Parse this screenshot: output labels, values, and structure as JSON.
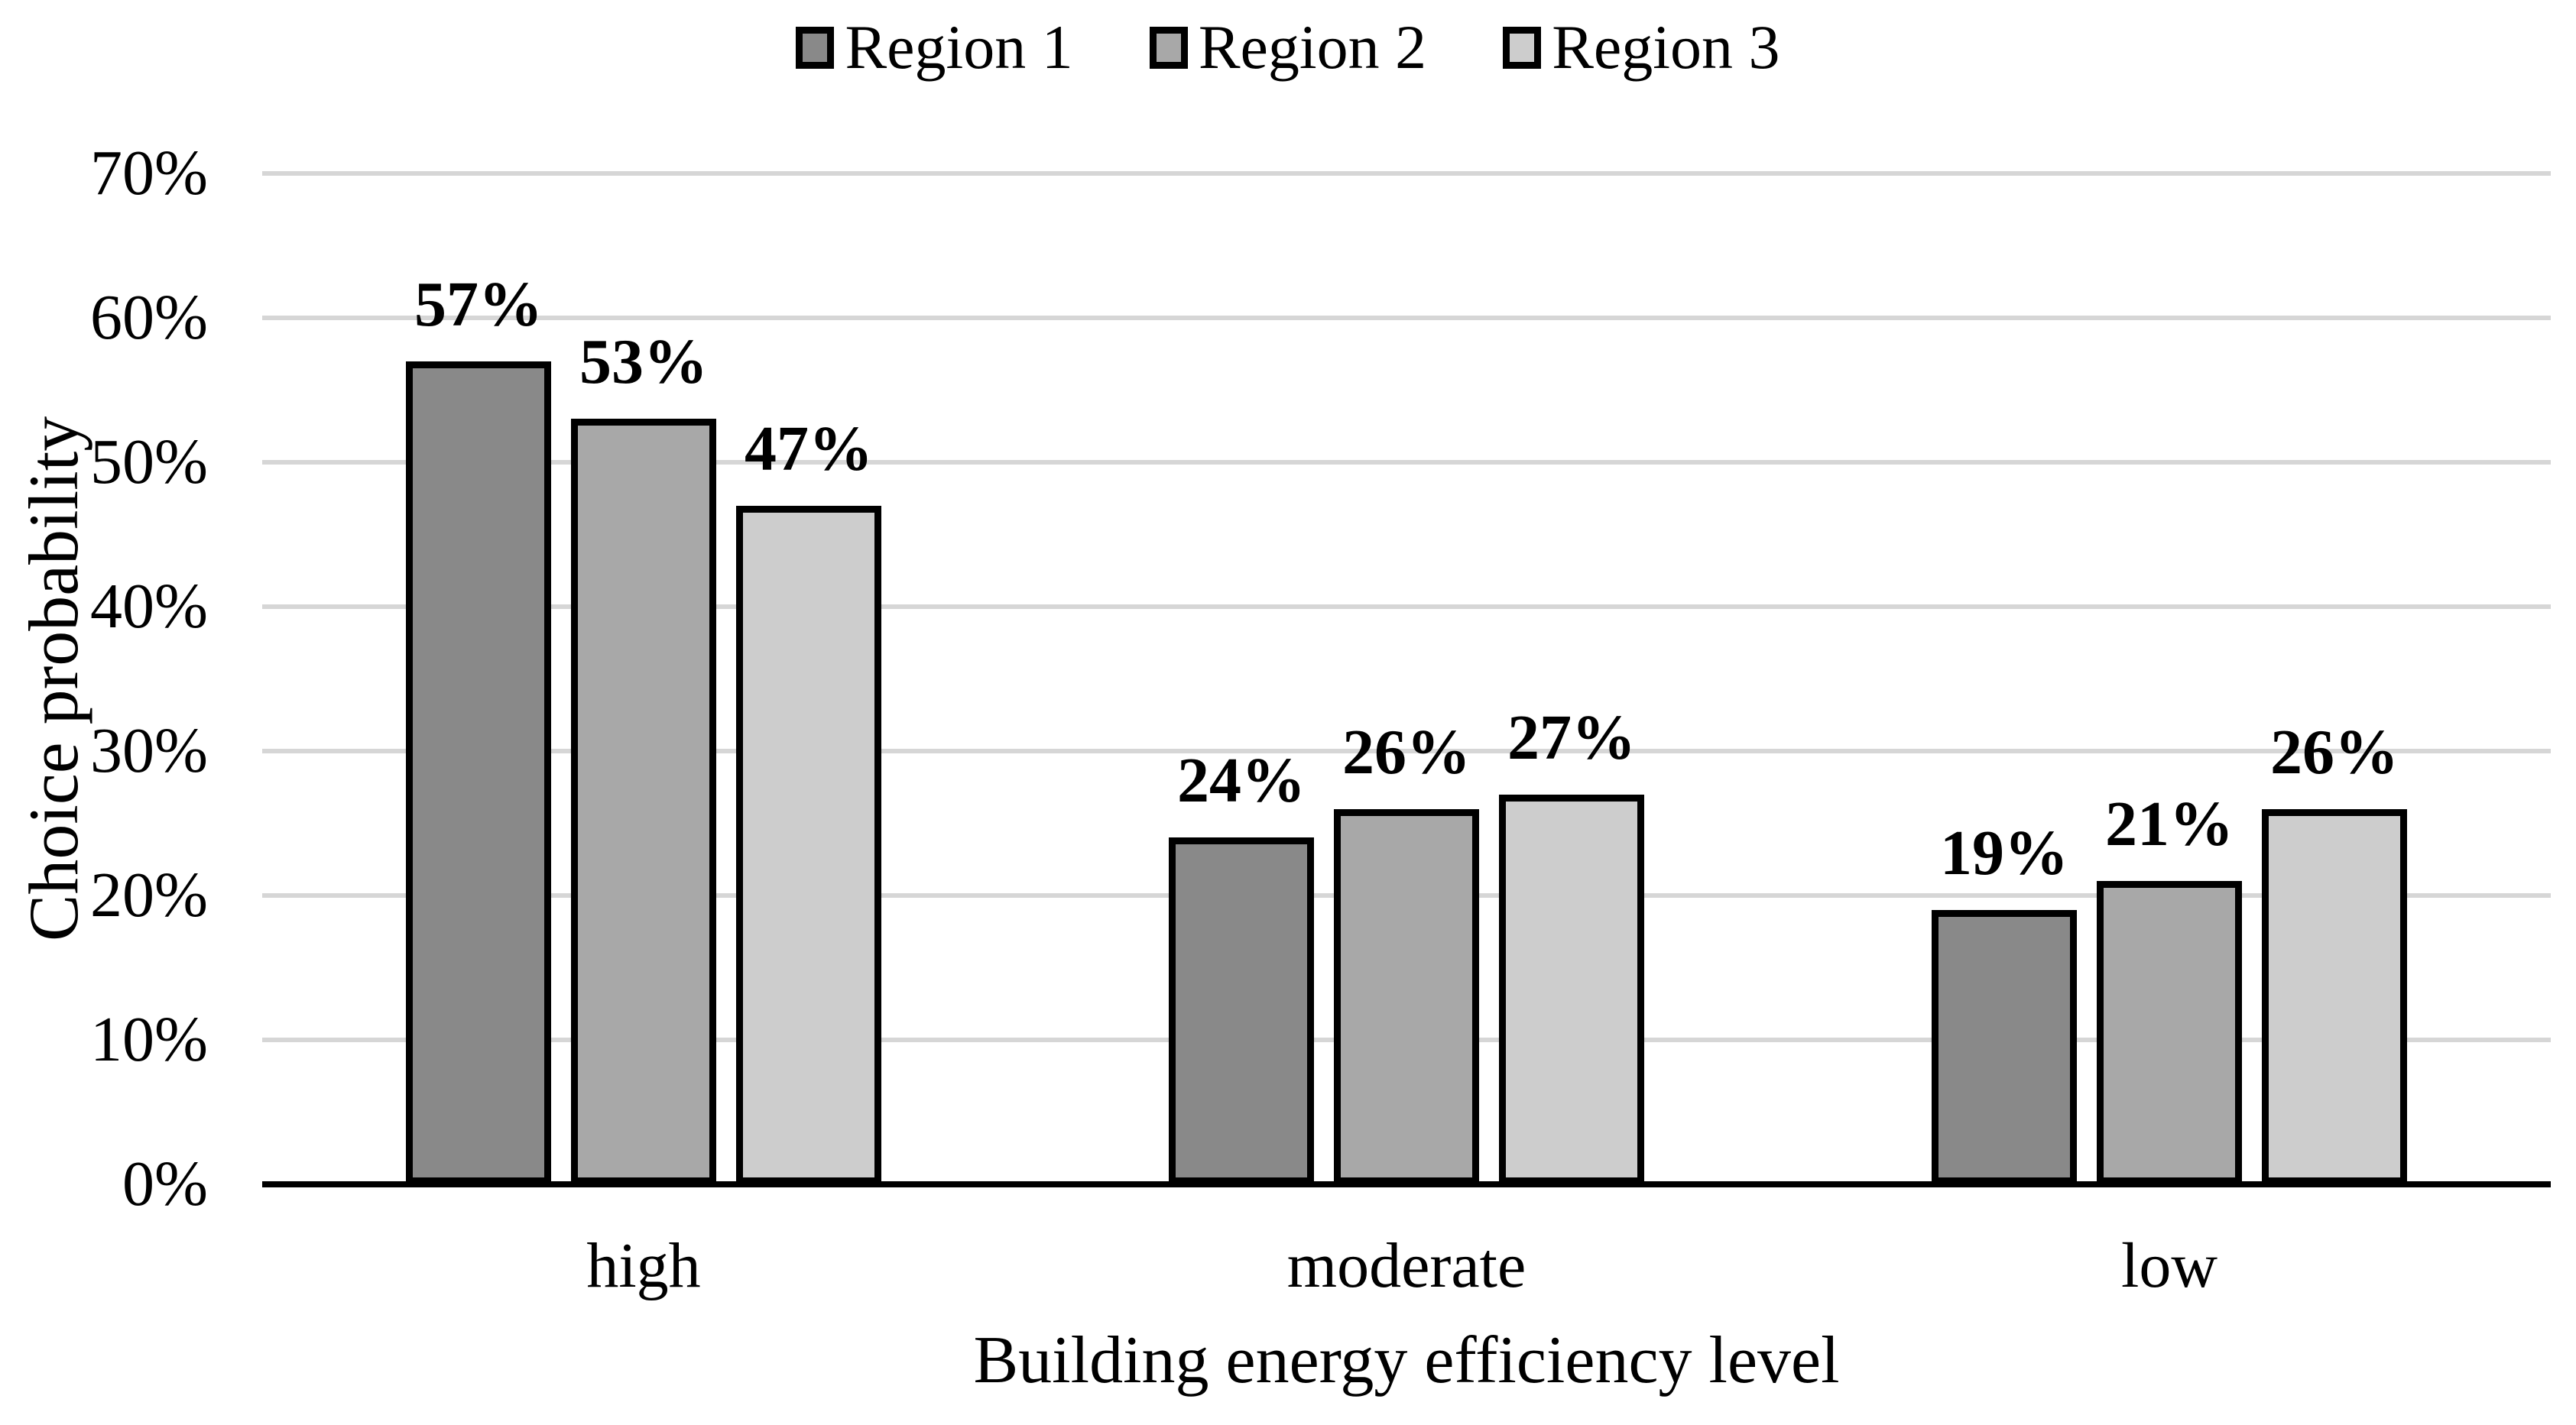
{
  "chart_data": {
    "type": "bar",
    "title": "",
    "xlabel": "Building energy efficiency level",
    "ylabel": "Choice probability",
    "categories": [
      "high",
      "moderate",
      "low"
    ],
    "series": [
      {
        "name": "Region 1",
        "color": "#898989",
        "values": [
          57,
          24,
          19
        ],
        "labels": [
          "57%",
          "24%",
          "19%"
        ]
      },
      {
        "name": "Region 2",
        "color": "#A8A8A8",
        "values": [
          53,
          26,
          21
        ],
        "labels": [
          "53%",
          "26%",
          "21%"
        ]
      },
      {
        "name": "Region 3",
        "color": "#CDCDCD",
        "values": [
          47,
          27,
          26
        ],
        "labels": [
          "47%",
          "27%",
          "26%"
        ]
      }
    ],
    "ylim": [
      0,
      70
    ],
    "ytick_step": 10,
    "yticks": [
      "0%",
      "10%",
      "20%",
      "30%",
      "40%",
      "50%",
      "60%",
      "70%"
    ],
    "grid": true,
    "legend_position": "top",
    "colors": {
      "gridline": "#D6D6D6",
      "axis_line": "#000000",
      "bar_border": "#000000",
      "background": "#FFFFFF",
      "text": "#000000"
    }
  }
}
